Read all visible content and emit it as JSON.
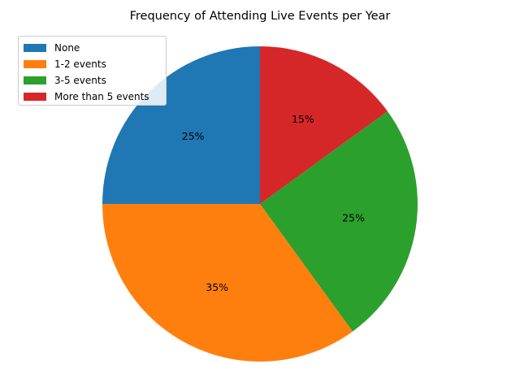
{
  "chart_data": {
    "type": "pie",
    "title": "Frequency of Attending Live Events per Year",
    "categories": [
      "None",
      "1-2 events",
      "3-5 events",
      "More than 5 events"
    ],
    "values": [
      25,
      35,
      25,
      15
    ],
    "labels": [
      "25%",
      "35%",
      "25%",
      "15%"
    ],
    "colors": [
      "#1f77b4",
      "#ff7f0e",
      "#2ca02c",
      "#d62728"
    ],
    "start_angle_deg": 90,
    "direction": "counterclockwise",
    "legend_position": "top-left"
  }
}
